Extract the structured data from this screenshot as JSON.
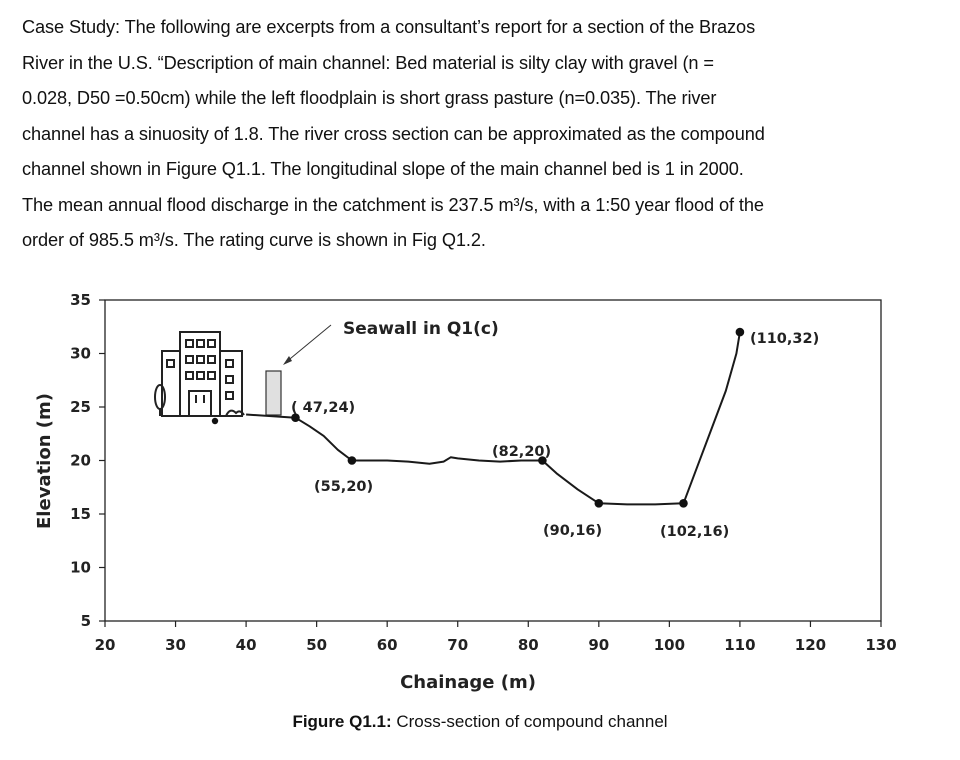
{
  "text": {
    "lines": [
      "Case Study: The following are excerpts from a consultant’s report for a section of the Brazos",
      "River in the U.S.  “Description of main channel: Bed material is silty clay with gravel (n =",
      "0.028, D50 =0.50cm) while the left floodplain is short grass pasture (n=0.035). The river",
      "channel has a sinuosity of 1.8. The river cross section can be approximated as the compound",
      "channel shown in Figure Q1.1.  The longitudinal slope of the main channel bed is 1 in 2000.",
      "The mean annual flood discharge in the catchment is 237.5 m³/s, with a 1:50 year flood of the",
      "order of 985.5 m³/s. The rating curve is shown in Fig Q1.2."
    ]
  },
  "caption": {
    "label": "Figure Q1.1:",
    "text": " Cross-section of compound channel"
  },
  "chart_data": {
    "type": "line",
    "title": "",
    "xlabel": "Chainage (m)",
    "ylabel": "Elevation (m)",
    "xlim": [
      20,
      130
    ],
    "ylim": [
      5,
      35
    ],
    "xticks": [
      20,
      30,
      40,
      50,
      60,
      70,
      80,
      90,
      100,
      110,
      120,
      130
    ],
    "yticks": [
      5,
      10,
      15,
      20,
      25,
      30,
      35
    ],
    "grid": false,
    "series": [
      {
        "x": [
          40,
          47,
          49,
          51,
          53,
          55,
          60,
          63,
          66,
          68,
          69,
          70,
          73,
          76,
          79,
          82,
          84,
          87,
          90,
          94,
          98,
          102,
          104,
          106,
          108,
          109.5,
          110
        ],
        "y": [
          24.3,
          24,
          23.2,
          22.3,
          21.0,
          20,
          20,
          19.9,
          19.7,
          19.9,
          20.3,
          20.2,
          20.0,
          19.9,
          20.0,
          20,
          18.8,
          17.3,
          16,
          15.9,
          15.9,
          16,
          19.5,
          23.0,
          26.5,
          30.0,
          32
        ]
      }
    ],
    "points": [
      {
        "x": 47,
        "y": 24,
        "label": "( 47,24)"
      },
      {
        "x": 55,
        "y": 20,
        "label": "(55,20)"
      },
      {
        "x": 82,
        "y": 20,
        "label": "(82,20)"
      },
      {
        "x": 90,
        "y": 16,
        "label": "(90,16)"
      },
      {
        "x": 102,
        "y": 16,
        "label": "(102,16)"
      },
      {
        "x": 110,
        "y": 32,
        "label": "(110,32)"
      }
    ],
    "annotations": [
      {
        "text": "Seawall in Q1(c)"
      }
    ],
    "colors": {
      "line": "#1a1a1a",
      "marker": "#111111",
      "wall": "#e0e0e0"
    }
  }
}
